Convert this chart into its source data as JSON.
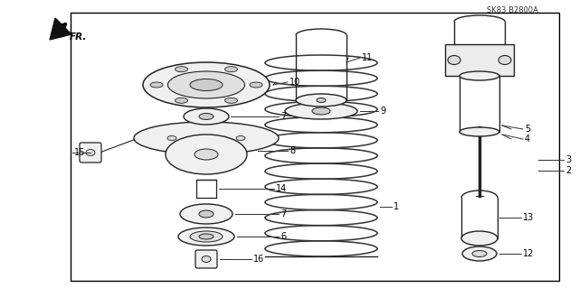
{
  "bg_color": "#ffffff",
  "border_color": "#000000",
  "line_color": "#333333",
  "text_color": "#000000",
  "diagram_code": "SK83 B2800A",
  "figsize": [
    6.4,
    3.19
  ],
  "dpi": 100
}
